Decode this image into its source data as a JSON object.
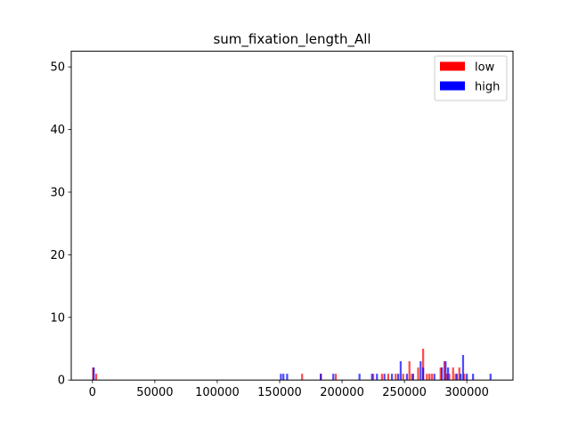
{
  "chart_data": {
    "type": "histogram",
    "title": "sum_fixation_length_All",
    "xlabel": "",
    "ylabel": "",
    "xlim": [
      -17000,
      337000
    ],
    "ylim": [
      0,
      52.5
    ],
    "xticks": [
      0,
      50000,
      100000,
      150000,
      200000,
      250000,
      300000
    ],
    "yticks": [
      0,
      10,
      20,
      30,
      40,
      50
    ],
    "legend": {
      "position": "top-right"
    },
    "bar_width": 1600,
    "series": [
      {
        "name": "low",
        "color": "#ff0000",
        "bars": [
          {
            "x": 500,
            "count": 2
          },
          {
            "x": 3000,
            "count": 1
          },
          {
            "x": 168000,
            "count": 1
          },
          {
            "x": 183000,
            "count": 1
          },
          {
            "x": 195000,
            "count": 1
          },
          {
            "x": 225000,
            "count": 1
          },
          {
            "x": 232000,
            "count": 1
          },
          {
            "x": 237000,
            "count": 1
          },
          {
            "x": 243000,
            "count": 1
          },
          {
            "x": 249000,
            "count": 1
          },
          {
            "x": 254000,
            "count": 3
          },
          {
            "x": 256000,
            "count": 1
          },
          {
            "x": 261000,
            "count": 2
          },
          {
            "x": 265000,
            "count": 5
          },
          {
            "x": 268000,
            "count": 1
          },
          {
            "x": 270000,
            "count": 1
          },
          {
            "x": 272000,
            "count": 1
          },
          {
            "x": 279000,
            "count": 2
          },
          {
            "x": 282000,
            "count": 3
          },
          {
            "x": 284000,
            "count": 1
          },
          {
            "x": 286000,
            "count": 1
          },
          {
            "x": 289000,
            "count": 2
          },
          {
            "x": 291000,
            "count": 1
          },
          {
            "x": 294000,
            "count": 2
          },
          {
            "x": 298000,
            "count": 1
          }
        ]
      },
      {
        "name": "high",
        "color": "#0000ff",
        "bars": [
          {
            "x": 1000,
            "count": 2
          },
          {
            "x": 151000,
            "count": 1
          },
          {
            "x": 153000,
            "count": 1
          },
          {
            "x": 156000,
            "count": 1
          },
          {
            "x": 183000,
            "count": 1
          },
          {
            "x": 193000,
            "count": 1
          },
          {
            "x": 214000,
            "count": 1
          },
          {
            "x": 224000,
            "count": 1
          },
          {
            "x": 228000,
            "count": 1
          },
          {
            "x": 234000,
            "count": 1
          },
          {
            "x": 240000,
            "count": 1
          },
          {
            "x": 245000,
            "count": 1
          },
          {
            "x": 247000,
            "count": 3
          },
          {
            "x": 252000,
            "count": 1
          },
          {
            "x": 257000,
            "count": 1
          },
          {
            "x": 263000,
            "count": 3
          },
          {
            "x": 265000,
            "count": 2
          },
          {
            "x": 274000,
            "count": 1
          },
          {
            "x": 280000,
            "count": 2
          },
          {
            "x": 283000,
            "count": 3
          },
          {
            "x": 285000,
            "count": 2
          },
          {
            "x": 292000,
            "count": 1
          },
          {
            "x": 295000,
            "count": 1
          },
          {
            "x": 297000,
            "count": 4
          },
          {
            "x": 300000,
            "count": 1
          },
          {
            "x": 305000,
            "count": 1
          },
          {
            "x": 319000,
            "count": 1
          }
        ]
      }
    ]
  }
}
